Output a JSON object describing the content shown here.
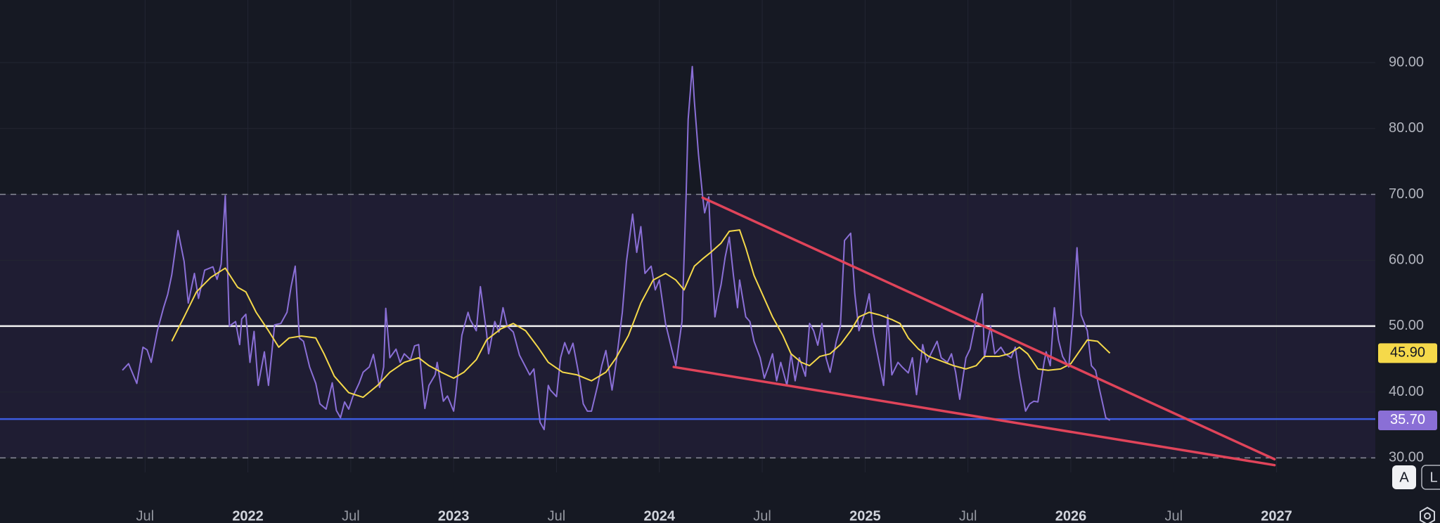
{
  "chart_data": {
    "type": "line",
    "xlim": [
      2020.795,
      2027.48
    ],
    "ylim": [
      27.8,
      99.5
    ],
    "xticks": [
      {
        "value": 2021.5,
        "label": "Jul"
      },
      {
        "value": 2022,
        "label": "2022"
      },
      {
        "value": 2022.5,
        "label": "Jul"
      },
      {
        "value": 2023,
        "label": "2023"
      },
      {
        "value": 2023.5,
        "label": "Jul"
      },
      {
        "value": 2024,
        "label": "2024"
      },
      {
        "value": 2024.5,
        "label": "Jul"
      },
      {
        "value": 2025,
        "label": "2025"
      },
      {
        "value": 2025.5,
        "label": "Jul"
      },
      {
        "value": 2026,
        "label": "2026"
      },
      {
        "value": 2026.5,
        "label": "Jul"
      },
      {
        "value": 2027,
        "label": "2027"
      }
    ],
    "yticks": [
      {
        "value": 30,
        "label": "30.00"
      },
      {
        "value": 40,
        "label": "40.00"
      },
      {
        "value": 50,
        "label": "50.00"
      },
      {
        "value": 60,
        "label": "60.00"
      },
      {
        "value": 70,
        "label": "70.00"
      },
      {
        "value": 80,
        "label": "80.00"
      },
      {
        "value": 90,
        "label": "90.00"
      }
    ],
    "grid": true,
    "band": {
      "from": 30,
      "to": 70,
      "color": "#1f1d33"
    },
    "levels": [
      {
        "value": 70,
        "color": "#8a8c99",
        "style": "dashed"
      },
      {
        "value": 30,
        "color": "#8a8c99",
        "style": "dashed"
      },
      {
        "value": 50,
        "color": "#f2f2f2",
        "style": "solid"
      },
      {
        "value": 35.9,
        "color": "#3d5ce0",
        "style": "solid"
      }
    ],
    "series": [
      {
        "color": "#8a6fd6",
        "label_text_color": "#ffffff",
        "last_value_label": {
          "value": 35.7,
          "label": "35.70"
        },
        "x": [
          2021.39,
          2021.42,
          2021.46,
          2021.49,
          2021.51,
          2021.53,
          2021.56,
          2021.59,
          2021.61,
          2021.63,
          2021.66,
          2021.69,
          2021.71,
          2021.74,
          2021.76,
          2021.79,
          2021.83,
          2021.85,
          2021.87,
          2021.89,
          2021.91,
          2021.94,
          2021.96,
          2021.97,
          2021.99,
          2022.01,
          2022.03,
          2022.05,
          2022.08,
          2022.1,
          2022.13,
          2022.16,
          2022.19,
          2022.21,
          2022.23,
          2022.25,
          2022.27,
          2022.3,
          2022.33,
          2022.35,
          2022.38,
          2022.41,
          2022.43,
          2022.45,
          2022.47,
          2022.49,
          2022.51,
          2022.54,
          2022.56,
          2022.59,
          2022.61,
          2022.64,
          2022.66,
          2022.67,
          2022.69,
          2022.72,
          2022.74,
          2022.76,
          2022.79,
          2022.81,
          2022.83,
          2022.86,
          2022.88,
          2022.91,
          2022.92,
          2022.95,
          2022.97,
          2023.0,
          2023.01,
          2023.04,
          2023.07,
          2023.08,
          2023.11,
          2023.13,
          2023.16,
          2023.17,
          2023.2,
          2023.22,
          2023.24,
          2023.26,
          2023.29,
          2023.32,
          2023.35,
          2023.37,
          2023.39,
          2023.42,
          2023.44,
          2023.46,
          2023.47,
          2023.5,
          2023.52,
          2023.54,
          2023.56,
          2023.58,
          2023.61,
          2023.63,
          2023.65,
          2023.67,
          2023.7,
          2023.72,
          2023.74,
          2023.77,
          2023.79,
          2023.82,
          2023.84,
          2023.87,
          2023.89,
          2023.91,
          2023.93,
          2023.96,
          2023.98,
          2024.0,
          2024.03,
          2024.06,
          2024.08,
          2024.11,
          2024.13,
          2024.14,
          2024.16,
          2024.17,
          2024.19,
          2024.21,
          2024.22,
          2024.24,
          2024.25,
          2024.27,
          2024.29,
          2024.3,
          2024.32,
          2024.34,
          2024.36,
          2024.38,
          2024.39,
          2024.42,
          2024.44,
          2024.46,
          2024.49,
          2024.51,
          2024.53,
          2024.55,
          2024.57,
          2024.59,
          2024.62,
          2024.64,
          2024.66,
          2024.68,
          2024.71,
          2024.73,
          2024.75,
          2024.77,
          2024.79,
          2024.81,
          2024.83,
          2024.86,
          2024.88,
          2024.9,
          2024.93,
          2024.95,
          2024.97,
          2025.0,
          2025.02,
          2025.04,
          2025.06,
          2025.09,
          2025.11,
          2025.13,
          2025.16,
          2025.18,
          2025.21,
          2025.23,
          2025.25,
          2025.28,
          2025.3,
          2025.32,
          2025.35,
          2025.37,
          2025.4,
          2025.42,
          2025.44,
          2025.46,
          2025.49,
          2025.51,
          2025.54,
          2025.57,
          2025.58,
          2025.61,
          2025.63,
          2025.66,
          2025.68,
          2025.71,
          2025.73,
          2025.75,
          2025.78,
          2025.8,
          2025.82,
          2025.84,
          2025.87,
          2025.88,
          2025.9,
          2025.92,
          2025.94,
          2025.96,
          2025.99,
          2026.01,
          2026.03,
          2026.05,
          2026.08,
          2026.1,
          2026.12,
          2026.14,
          2026.17,
          2026.19
        ],
        "values": [
          43.3,
          44.3,
          41.3,
          46.8,
          46.4,
          44.5,
          49.3,
          52.8,
          54.8,
          57.8,
          64.5,
          59.8,
          53.5,
          58.0,
          54.2,
          58.5,
          59.0,
          57.1,
          59.4,
          69.8,
          50.0,
          50.7,
          47.2,
          51.1,
          51.8,
          44.5,
          49.2,
          41.0,
          46.1,
          41.0,
          50.2,
          50.4,
          52.1,
          56.0,
          59.1,
          48.2,
          47.7,
          43.8,
          41.3,
          38.2,
          37.4,
          41.4,
          37.2,
          36.1,
          38.5,
          37.4,
          39.3,
          41.3,
          43.0,
          43.8,
          45.7,
          40.7,
          43.8,
          52.7,
          45.2,
          46.5,
          44.5,
          45.8,
          44.9,
          47.0,
          47.2,
          37.5,
          41.0,
          42.6,
          44.5,
          38.6,
          39.4,
          37.1,
          39.6,
          48.6,
          52.1,
          51.0,
          49.3,
          56.0,
          49.0,
          45.8,
          50.7,
          49.1,
          52.8,
          50.0,
          49.1,
          45.6,
          43.8,
          42.6,
          43.5,
          35.4,
          34.3,
          41.0,
          40.3,
          39.3,
          45.2,
          47.5,
          45.8,
          47.4,
          42.4,
          38.2,
          37.1,
          37.1,
          41.0,
          44.0,
          46.3,
          40.3,
          44.5,
          52.1,
          59.8,
          67.0,
          61.2,
          65.1,
          58.0,
          59.1,
          55.5,
          57.0,
          50.4,
          46.5,
          44.0,
          50.7,
          69.8,
          81.4,
          89.4,
          84.2,
          76.1,
          69.8,
          67.2,
          69.6,
          62.6,
          51.4,
          54.9,
          56.3,
          60.5,
          63.5,
          57.7,
          52.8,
          57.0,
          51.4,
          50.7,
          47.7,
          45.2,
          42.1,
          43.8,
          45.8,
          41.7,
          44.5,
          41.0,
          45.8,
          41.7,
          45.2,
          42.4,
          50.4,
          49.3,
          47.1,
          50.4,
          45.2,
          43.0,
          47.7,
          50.0,
          63.0,
          64.1,
          54.9,
          49.3,
          52.1,
          54.9,
          49.0,
          45.8,
          41.0,
          51.7,
          42.6,
          44.5,
          43.8,
          42.9,
          45.2,
          39.6,
          47.2,
          44.5,
          45.8,
          47.7,
          45.2,
          44.5,
          45.8,
          43.0,
          38.9,
          45.2,
          46.5,
          51.1,
          54.9,
          45.2,
          50.0,
          45.8,
          46.8,
          45.8,
          45.2,
          46.8,
          42.4,
          37.1,
          38.2,
          38.6,
          38.5,
          44.5,
          46.1,
          44.0,
          52.8,
          47.9,
          45.4,
          43.8,
          51.4,
          61.9,
          51.7,
          49.3,
          44.0,
          43.3,
          40.3,
          36.1,
          35.7
        ]
      },
      {
        "color": "#f5d94a",
        "label_text_color": "#131722",
        "last_value_label": {
          "value": 45.9,
          "label": "45.90"
        },
        "x": [
          2021.63,
          2021.69,
          2021.75,
          2021.82,
          2021.89,
          2021.95,
          2021.99,
          2022.04,
          2022.1,
          2022.15,
          2022.2,
          2022.26,
          2022.33,
          2022.37,
          2022.42,
          2022.49,
          2022.56,
          2022.63,
          2022.69,
          2022.76,
          2022.83,
          2022.88,
          2022.94,
          2023.0,
          2023.05,
          2023.11,
          2023.16,
          2023.23,
          2023.29,
          2023.35,
          2023.41,
          2023.46,
          2023.53,
          2023.6,
          2023.67,
          2023.74,
          2023.79,
          2023.85,
          2023.91,
          2023.97,
          2024.03,
          2024.08,
          2024.12,
          2024.17,
          2024.21,
          2024.25,
          2024.3,
          2024.34,
          2024.39,
          2024.42,
          2024.46,
          2024.51,
          2024.55,
          2024.6,
          2024.64,
          2024.69,
          2024.73,
          2024.78,
          2024.83,
          2024.88,
          2024.93,
          2024.97,
          2025.02,
          2025.07,
          2025.13,
          2025.17,
          2025.21,
          2025.26,
          2025.31,
          2025.37,
          2025.43,
          2025.49,
          2025.54,
          2025.58,
          2025.65,
          2025.7,
          2025.75,
          2025.79,
          2025.84,
          2025.89,
          2025.95,
          2026.0,
          2026.04,
          2026.08,
          2026.13,
          2026.16,
          2026.19
        ],
        "values": [
          47.7,
          51.4,
          55.2,
          57.4,
          58.8,
          55.9,
          55.2,
          52.1,
          49.3,
          46.8,
          48.2,
          48.5,
          48.2,
          45.8,
          42.4,
          39.9,
          39.2,
          41.0,
          43.0,
          44.5,
          45.2,
          44.0,
          43.0,
          42.1,
          43.0,
          44.9,
          47.9,
          49.6,
          50.4,
          49.3,
          46.8,
          44.5,
          43.0,
          42.6,
          41.7,
          43.0,
          45.2,
          48.6,
          53.5,
          57.0,
          58.0,
          57.0,
          55.5,
          59.1,
          60.2,
          61.2,
          62.6,
          64.4,
          64.6,
          61.9,
          57.7,
          54.2,
          51.4,
          48.6,
          45.8,
          44.5,
          44.0,
          45.4,
          45.8,
          47.2,
          49.3,
          51.4,
          52.1,
          51.7,
          51.0,
          50.4,
          48.2,
          46.5,
          45.4,
          44.7,
          44.0,
          43.5,
          44.0,
          45.4,
          45.4,
          45.8,
          46.8,
          45.8,
          43.5,
          43.3,
          43.5,
          44.3,
          46.1,
          47.9,
          47.7,
          46.8,
          45.9
        ]
      }
    ],
    "trendlines": [
      {
        "color": "#e0445a",
        "x": [
          2024.21,
          2026.99
        ],
        "y": [
          69.5,
          29.8
        ]
      },
      {
        "color": "#e0445a",
        "x": [
          2024.07,
          2026.99
        ],
        "y": [
          43.8,
          28.9
        ]
      }
    ]
  },
  "controls": {
    "buttons": [
      "A",
      "L"
    ]
  }
}
